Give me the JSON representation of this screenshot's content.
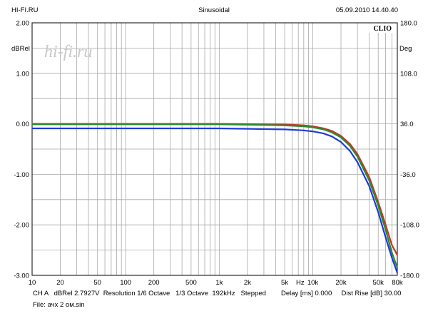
{
  "header": {
    "left": "HI-FI.RU",
    "center": "Sinusoidal",
    "right": "05.09.2010 14.40.40"
  },
  "watermark": "hi-fi.ru",
  "badge": "CLIO",
  "footer": {
    "line1": "CH A   dBRel 2.7927V  Resolution 1/6 Octave   1/3 Octave  192kHz   Stepped        Delay [ms] 0.000     Dist Rise [dB] 30.00",
    "line2": "File: ачх 2 ом.sin"
  },
  "chart_data": {
    "type": "line",
    "x_scale": "log",
    "xlim": [
      10,
      80000
    ],
    "ylim": [
      -3.0,
      2.0
    ],
    "ylim_right": [
      -180.0,
      180.0
    ],
    "ylabel": "dBRel",
    "ylabel_right": "Deg",
    "x_ticks": [
      10,
      20,
      50,
      100,
      200,
      500,
      1000,
      2000,
      5000,
      10000,
      20000,
      50000,
      80000
    ],
    "x_tick_labels": [
      "10",
      "20",
      "50",
      "100",
      "200",
      "500",
      "1k",
      "2k",
      "5k",
      "10k",
      "20k",
      "50k",
      "80k"
    ],
    "x_unit_label": "Hz",
    "y_tick_labels": [
      "2.00",
      "1.00",
      "0.00",
      "-1.00",
      "-2.00",
      "-3.00"
    ],
    "y_right_tick_labels": [
      "180.0",
      "108.0",
      "36.0",
      "-36.0",
      "-108.0",
      "-180.0"
    ],
    "grid": true,
    "series": [
      {
        "color": "#c0392b",
        "x": [
          10,
          100,
          1000,
          5000,
          8000,
          10000,
          13000,
          16000,
          20000,
          25000,
          30000,
          40000,
          50000,
          60000,
          70000,
          80000
        ],
        "y": [
          0.0,
          0.0,
          0.0,
          -0.01,
          -0.03,
          -0.05,
          -0.09,
          -0.14,
          -0.24,
          -0.4,
          -0.6,
          -1.05,
          -1.55,
          -2.0,
          -2.4,
          -2.6
        ]
      },
      {
        "color": "#2e8b2e",
        "x": [
          10,
          100,
          1000,
          5000,
          8000,
          10000,
          13000,
          16000,
          20000,
          25000,
          30000,
          40000,
          50000,
          60000,
          70000,
          80000
        ],
        "y": [
          -0.01,
          -0.01,
          -0.01,
          -0.03,
          -0.05,
          -0.07,
          -0.11,
          -0.17,
          -0.27,
          -0.44,
          -0.65,
          -1.12,
          -1.62,
          -2.1,
          -2.55,
          -2.85
        ]
      },
      {
        "color": "#1f3bd6",
        "x": [
          10,
          100,
          1000,
          5000,
          8000,
          10000,
          13000,
          16000,
          20000,
          25000,
          30000,
          40000,
          50000,
          60000,
          70000,
          80000
        ],
        "y": [
          -0.09,
          -0.09,
          -0.09,
          -0.11,
          -0.13,
          -0.15,
          -0.19,
          -0.25,
          -0.36,
          -0.54,
          -0.76,
          -1.23,
          -1.75,
          -2.25,
          -2.65,
          -2.95
        ]
      }
    ]
  }
}
